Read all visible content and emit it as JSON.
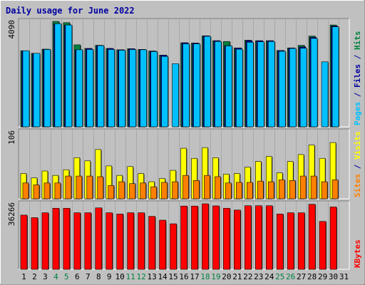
{
  "chart_data": {
    "type": "bar",
    "title": "Daily usage for June 2022",
    "categories": [
      "1",
      "2",
      "3",
      "4",
      "5",
      "6",
      "7",
      "8",
      "9",
      "10",
      "11",
      "12",
      "13",
      "14",
      "15",
      "16",
      "17",
      "18",
      "19",
      "20",
      "21",
      "22",
      "23",
      "24",
      "25",
      "26",
      "27",
      "28",
      "29",
      "30",
      "31"
    ],
    "weekend_days": [
      "4",
      "5",
      "11",
      "12",
      "18",
      "19",
      "25",
      "26"
    ],
    "panels": [
      {
        "name": "hits-files-pages",
        "ymax_label": "4090",
        "ymax": 4090,
        "right_label_parts": [
          {
            "text": "Pages",
            "color": "#00c0ff"
          },
          {
            "text": " / ",
            "color": "#0000a0"
          },
          {
            "text": "Files",
            "color": "#0000a0"
          },
          {
            "text": " / ",
            "color": "#0000a0"
          },
          {
            "text": "Hits",
            "color": "#008040"
          }
        ],
        "series": [
          {
            "name": "Hits",
            "color": "#008040",
            "values": [
              2950,
              2850,
              3010,
              4090,
              4040,
              3180,
              3040,
              3160,
              3040,
              2990,
              3030,
              3000,
              2940,
              2780,
              0,
              3260,
              3250,
              3530,
              3340,
              3310,
              3060,
              3360,
              3340,
              3340,
              2960,
              3060,
              3160,
              3520,
              0,
              3950,
              0
            ]
          },
          {
            "name": "Files",
            "color": "#0000a0",
            "values": [
              2950,
              2850,
              3010,
              4000,
              3950,
              2990,
              3040,
              3160,
              3040,
              2990,
              3030,
              3000,
              2940,
              2780,
              0,
              3260,
              3250,
              3530,
              3340,
              3150,
              3060,
              3340,
              3340,
              3340,
              2960,
              3060,
              3100,
              3470,
              0,
              3910,
              0
            ]
          },
          {
            "name": "Pages",
            "color": "#00c0ff",
            "values": [
              2950,
              2850,
              3000,
              4000,
              3950,
              2990,
              3000,
              3150,
              3000,
              2970,
              3000,
              2990,
              2920,
              2730,
              2450,
              3220,
              3220,
              3510,
              3310,
              3140,
              3010,
              3280,
              3300,
              3310,
              2930,
              3040,
              3050,
              3430,
              2520,
              3880,
              0
            ]
          }
        ]
      },
      {
        "name": "visits-sites",
        "ymax_label": "106",
        "ymax": 106,
        "right_label_parts": [
          {
            "text": "Sites",
            "color": "#ff8000"
          },
          {
            "text": " / ",
            "color": "#0000a0"
          },
          {
            "text": "Visits",
            "color": "#ffff00"
          }
        ],
        "series": [
          {
            "name": "Visits",
            "color": "#ffff00",
            "values": [
              40,
              33,
              44,
              37,
              46,
              65,
              60,
              78,
              52,
              37,
              51,
              40,
              27,
              32,
              45,
              80,
              64,
              81,
              65,
              39,
              40,
              50,
              59,
              67,
              41,
              59,
              70,
              85,
              64,
              89,
              0
            ]
          },
          {
            "name": "Sites",
            "color": "#ff8000",
            "values": [
              25,
              22,
              25,
              25,
              36,
              36,
              36,
              35,
              21,
              27,
              24,
              25,
              19,
              26,
              27,
              37,
              29,
              37,
              35,
              25,
              26,
              26,
              28,
              27,
              30,
              29,
              36,
              36,
              27,
              30,
              0
            ]
          }
        ]
      },
      {
        "name": "kbytes",
        "ymax_label": "36266",
        "ymax": 36266,
        "right_label_parts": [
          {
            "text": "KBytes",
            "color": "#ff0000"
          }
        ],
        "series": [
          {
            "name": "KBytes",
            "color": "#ff0000",
            "values": [
              30000,
              28600,
              31300,
              33800,
              33800,
              31300,
              31300,
              34000,
              31300,
              30600,
              31300,
              31300,
              29300,
              27200,
              25200,
              35000,
              35000,
              36266,
              35100,
              33800,
              32800,
              35200,
              35200,
              35200,
              30600,
              31300,
              31300,
              36000,
              26500,
              34500,
              0
            ]
          }
        ]
      }
    ],
    "colors": {
      "background": "#c0c0c0",
      "title": "#0000a0",
      "weekday_tick": "#000000",
      "weekend_tick": "#008040"
    }
  }
}
